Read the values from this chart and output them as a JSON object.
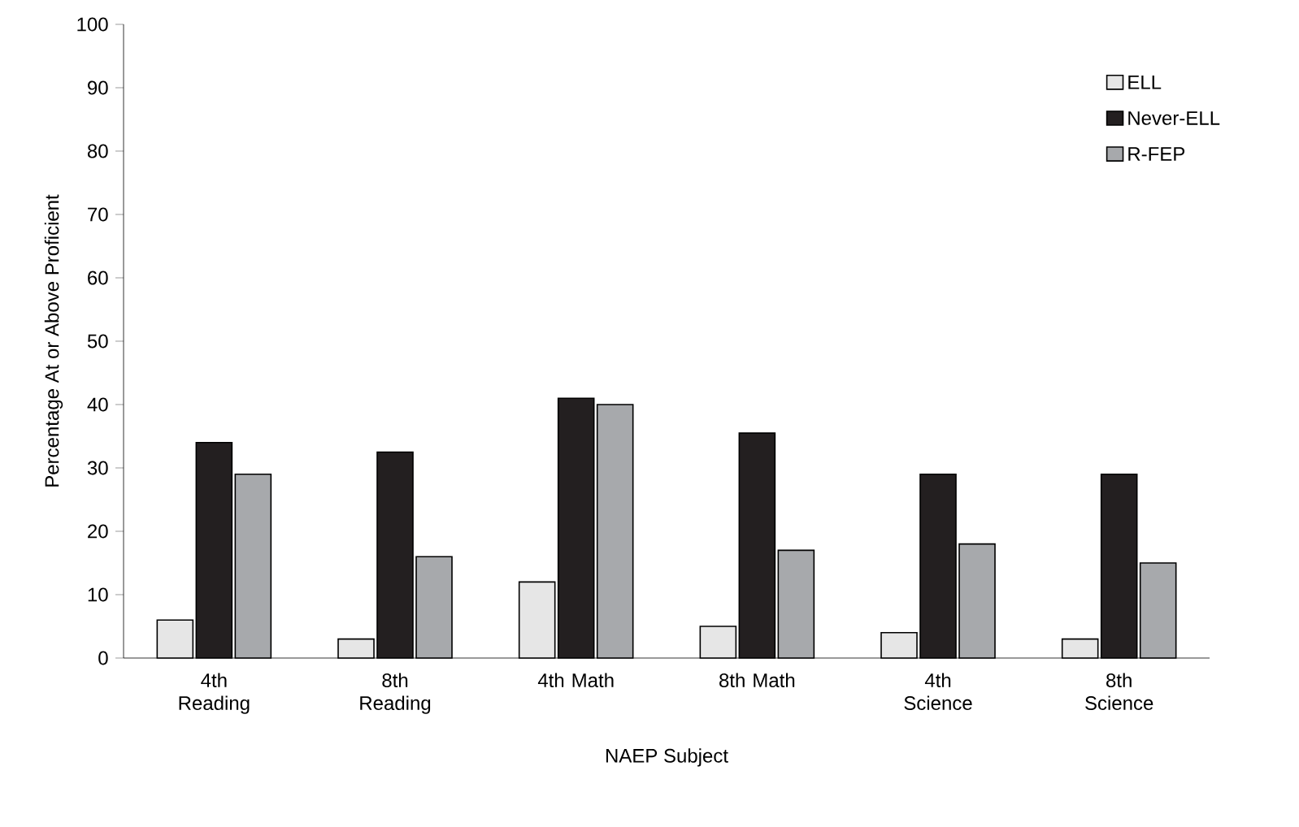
{
  "chart_data": {
    "type": "bar",
    "xlabel": "NAEP Subject",
    "ylabel": "Percentage At or Above Proficient",
    "categories": [
      "4th Reading",
      "8th Reading",
      "4th Math",
      "8th Math",
      "4th Science",
      "8th Science"
    ],
    "series": [
      {
        "name": "ELL",
        "color": "#e6e6e6",
        "values": [
          6,
          3,
          12,
          5,
          4,
          3
        ]
      },
      {
        "name": "Never-ELL",
        "color": "#231f20",
        "values": [
          34,
          32.5,
          41,
          35.5,
          29,
          29
        ]
      },
      {
        "name": "R-FEP",
        "color": "#a7a9ac",
        "values": [
          29,
          16,
          40,
          17,
          18,
          15
        ]
      }
    ],
    "ylim": [
      0,
      100
    ],
    "yticks": [
      0,
      10,
      20,
      30,
      40,
      50,
      60,
      70,
      80,
      90,
      100
    ],
    "legend": "top right",
    "grid": false
  }
}
